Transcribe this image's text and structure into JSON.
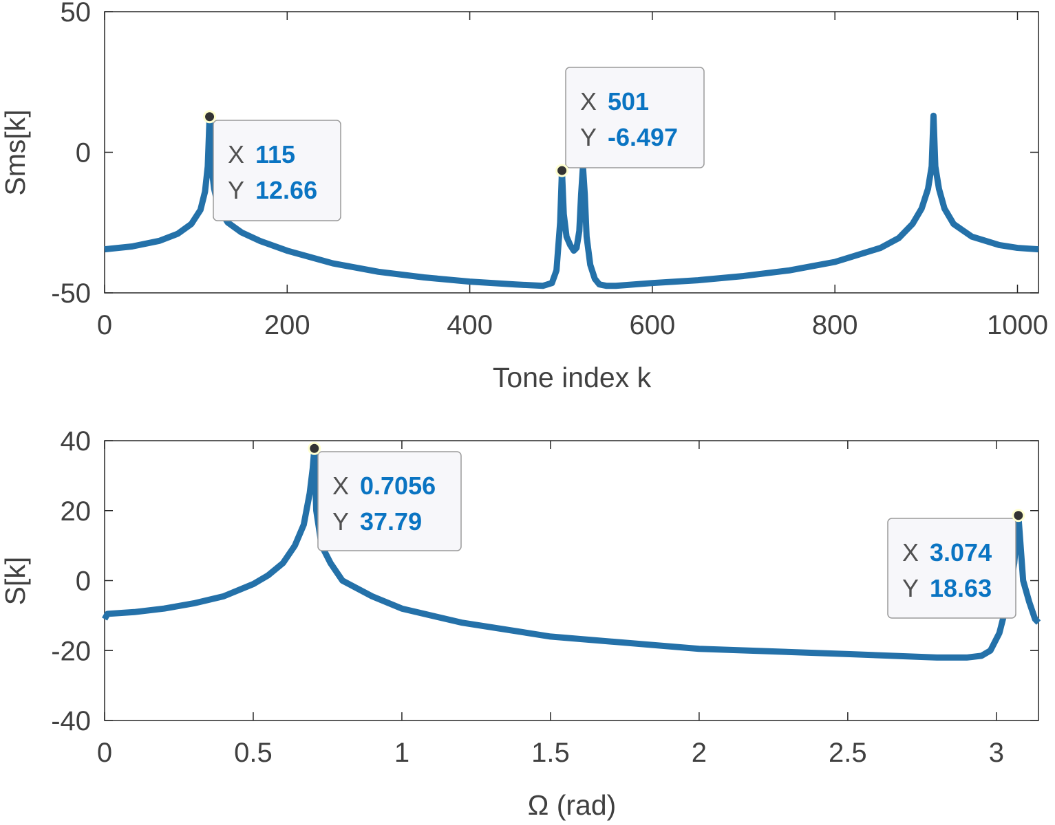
{
  "colors": {
    "line": "#2471a9",
    "axis": "#262626",
    "text": "#404040",
    "datatip_value": "#0a74c2",
    "datatip_bg": "#f7f7fa"
  },
  "chart_data": [
    {
      "type": "line",
      "title": "",
      "xlabel": "Tone index k",
      "ylabel": "Sms[k]",
      "xlim": [
        0,
        1023
      ],
      "ylim": [
        -50,
        50
      ],
      "xticks": [
        0,
        200,
        400,
        600,
        800,
        1000
      ],
      "yticks": [
        50,
        0,
        -50
      ],
      "xtick_labels": [
        "0",
        "200",
        "400",
        "600",
        "800",
        "1000"
      ],
      "ytick_labels": [
        "50",
        "0",
        "-50"
      ],
      "series": [
        {
          "name": "Sms",
          "x": [
            0,
            30,
            60,
            80,
            95,
            105,
            110,
            113,
            115,
            117,
            120,
            125,
            135,
            150,
            170,
            200,
            250,
            300,
            350,
            400,
            450,
            480,
            490,
            495,
            499,
            501,
            503,
            506,
            510,
            514,
            517,
            520,
            522,
            524,
            526,
            528,
            532,
            537,
            542,
            550,
            560,
            600,
            650,
            700,
            750,
            800,
            850,
            870,
            885,
            895,
            902,
            906,
            908,
            910,
            914,
            920,
            930,
            950,
            980,
            1000,
            1023
          ],
          "y": [
            -34.5,
            -33.5,
            -31.5,
            -29,
            -25.5,
            -20.5,
            -14,
            -5,
            12.66,
            -5,
            -13,
            -20,
            -25,
            -28.5,
            -31.5,
            -35,
            -39.5,
            -42.5,
            -44.5,
            -46,
            -47,
            -47.5,
            -46.5,
            -42,
            -25,
            -6.497,
            -22,
            -30,
            -33,
            -35,
            -34,
            -28,
            -15,
            -5,
            -15,
            -30,
            -40,
            -45,
            -47,
            -47.5,
            -47.5,
            -46.5,
            -45.5,
            -44,
            -42,
            -39,
            -34,
            -30.5,
            -25.5,
            -20,
            -13,
            -5,
            13,
            -5,
            -13,
            -20,
            -25.5,
            -30,
            -33,
            -34,
            -34.5
          ]
        }
      ],
      "datatips": [
        {
          "x_key": "X",
          "x_value": "115",
          "y_key": "Y",
          "y_value": "12.66",
          "x": 115,
          "y": 12.66
        },
        {
          "x_key": "X",
          "x_value": "501",
          "y_key": "Y",
          "y_value": "-6.497",
          "x": 501,
          "y": -6.497
        }
      ]
    },
    {
      "type": "line",
      "title": "",
      "xlabel": "Ω (rad)",
      "ylabel": "S[k]",
      "xlim": [
        0,
        3.1416
      ],
      "ylim": [
        -40,
        40
      ],
      "xticks": [
        0,
        0.5,
        1,
        1.5,
        2,
        2.5,
        3
      ],
      "yticks": [
        40,
        20,
        0,
        -20,
        -40
      ],
      "xtick_labels": [
        "0",
        "0.5",
        "1",
        "1.5",
        "2",
        "2.5",
        "3"
      ],
      "ytick_labels": [
        "40",
        "20",
        "0",
        "-20",
        "-40"
      ],
      "series": [
        {
          "name": "S",
          "x": [
            0,
            0.01,
            0.1,
            0.2,
            0.3,
            0.4,
            0.5,
            0.55,
            0.6,
            0.64,
            0.67,
            0.69,
            0.7,
            0.7056,
            0.712,
            0.73,
            0.76,
            0.8,
            0.9,
            1.0,
            1.2,
            1.5,
            2.0,
            2.5,
            2.8,
            2.9,
            2.95,
            2.98,
            3.01,
            3.04,
            3.06,
            3.074,
            3.09,
            3.11,
            3.13,
            3.1416
          ],
          "y": [
            -11,
            -9.5,
            -9,
            -8,
            -6.5,
            -4.5,
            -1,
            1.5,
            5,
            10,
            16,
            25,
            32,
            37.79,
            20,
            10,
            5,
            0,
            -4.5,
            -8,
            -12,
            -16,
            -19.5,
            -21,
            -22,
            -22,
            -21.5,
            -20,
            -15,
            -5,
            5,
            18.63,
            0,
            -6,
            -11,
            -12
          ]
        }
      ],
      "datatips": [
        {
          "x_key": "X",
          "x_value": "0.7056",
          "y_key": "Y",
          "y_value": "37.79",
          "x": 0.7056,
          "y": 37.79
        },
        {
          "x_key": "X",
          "x_value": "3.074",
          "y_key": "Y",
          "y_value": "18.63",
          "x": 3.074,
          "y": 18.63
        }
      ]
    }
  ]
}
